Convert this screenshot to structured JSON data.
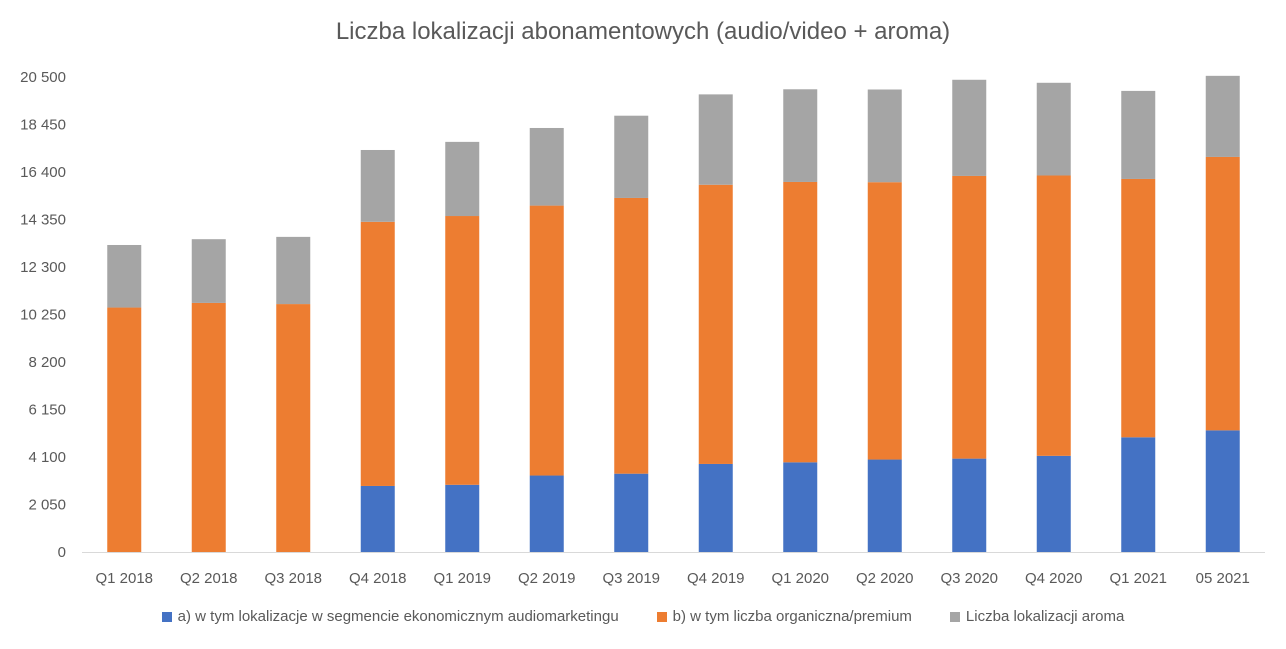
{
  "chart_data": {
    "type": "bar",
    "stacked": true,
    "title": "Liczba lokalizacji abonamentowych (audio/video + aroma)",
    "categories": [
      "Q1 2018",
      "Q2 2018",
      "Q3 2018",
      "Q4 2018",
      "Q1 2019",
      "Q2 2019",
      "Q3 2019",
      "Q4 2019",
      "Q1 2020",
      "Q2 2020",
      "Q3 2020",
      "Q4 2020",
      "Q1 2021",
      "05 2021"
    ],
    "y_ticks": [
      "0",
      "2 050",
      "4 100",
      "6 150",
      "8 200",
      "10 250",
      "12 300",
      "14 350",
      "16 400",
      "18 450",
      "20 500"
    ],
    "ylim": [
      0,
      20500
    ],
    "grid": false,
    "legend_position": "bottom",
    "series": [
      {
        "name": "a) w tym lokalizacje w segmencie ekonomicznym audiomarketingu",
        "color": "#4472C4",
        "values": [
          0,
          0,
          0,
          2850,
          2900,
          3300,
          3380,
          3800,
          3870,
          3990,
          4030,
          4150,
          4950,
          5250
        ]
      },
      {
        "name": "b) w tym liczba organiczna/premium",
        "color": "#ED7D31",
        "values": [
          10550,
          10750,
          10700,
          11400,
          11600,
          11650,
          11900,
          12050,
          12100,
          11970,
          12200,
          12100,
          11150,
          11800
        ]
      },
      {
        "name": "Liczba lokalizacji aroma",
        "color": "#A5A5A5",
        "values": [
          2700,
          2750,
          2900,
          3100,
          3200,
          3350,
          3550,
          3900,
          4000,
          4000,
          4150,
          4000,
          3800,
          3500
        ]
      }
    ]
  }
}
